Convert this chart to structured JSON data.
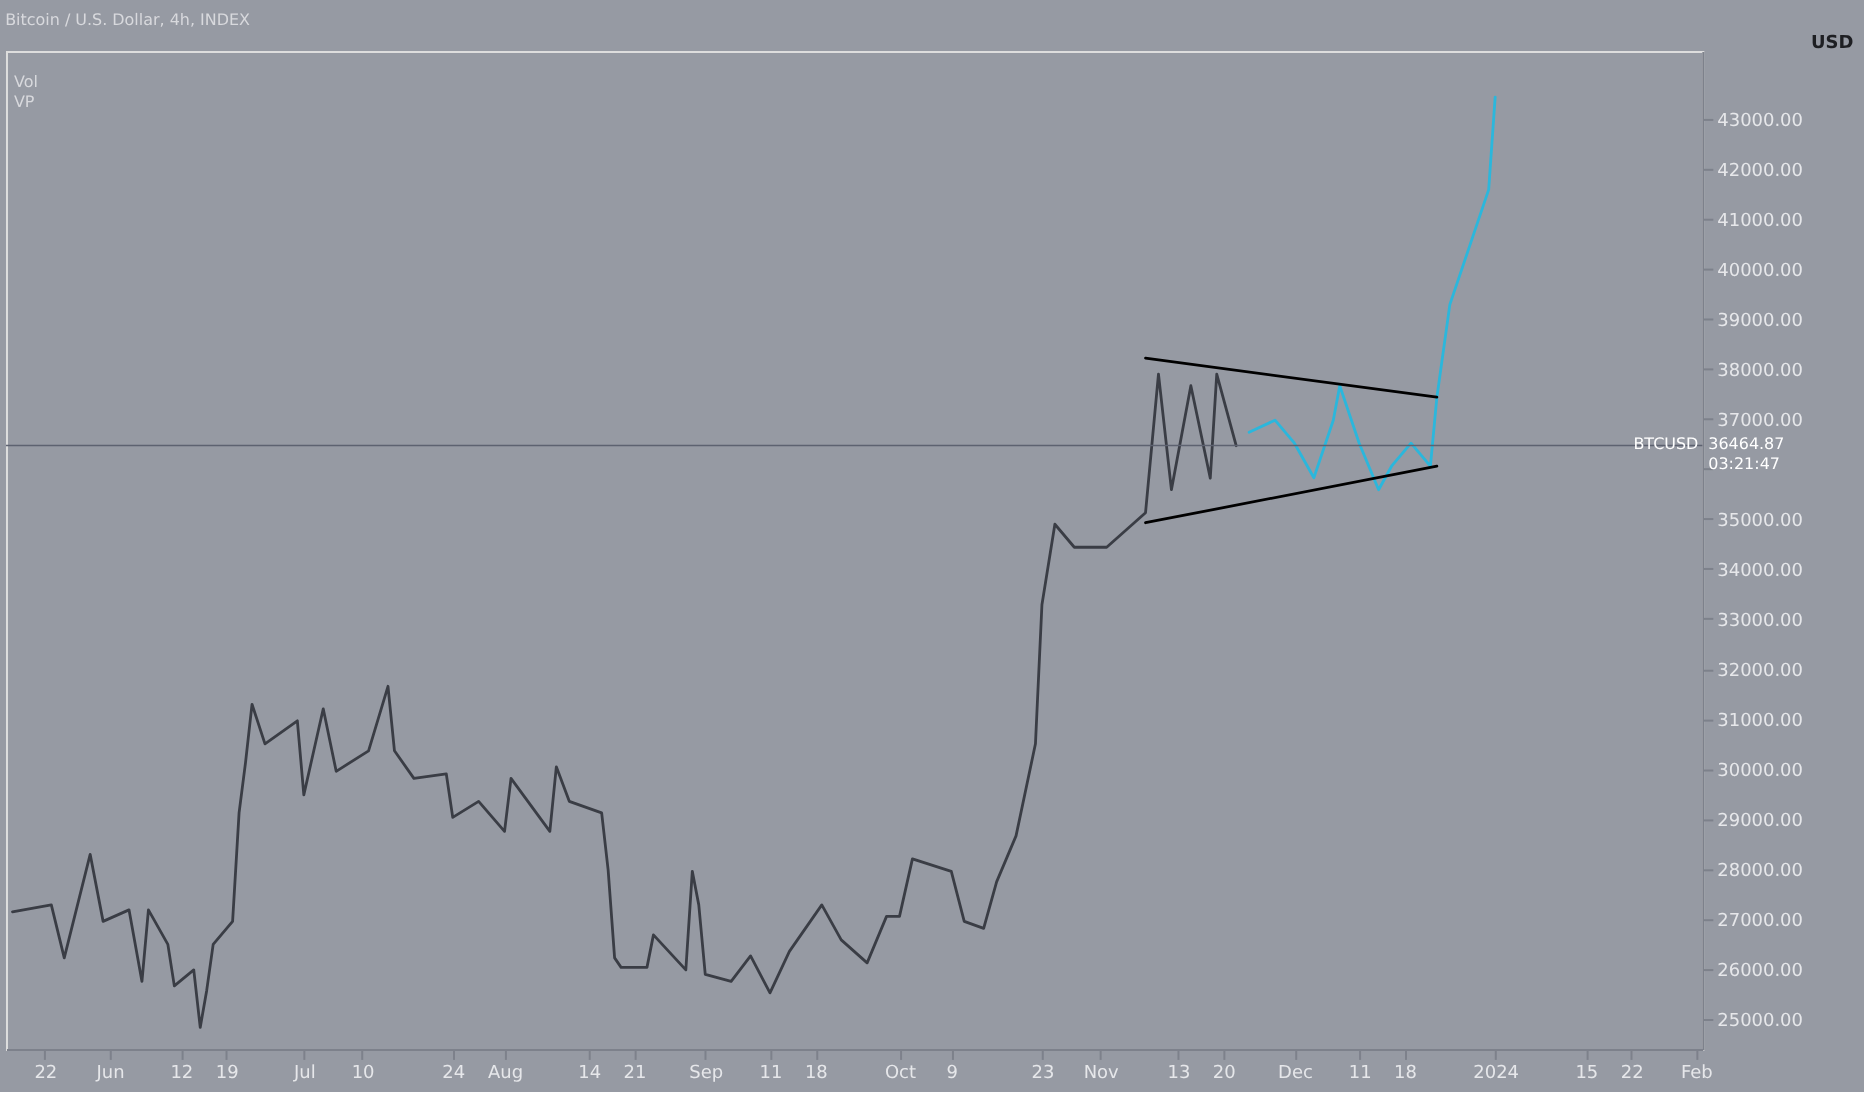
{
  "chart_data": {
    "type": "line",
    "title": "Bitcoin / U.S. Dollar, 4h, INDEX",
    "ylabel": "USD",
    "xlim": [
      "2023-05-16",
      "2024-02-02"
    ],
    "xticks": [
      {
        "value": "2023-05-22",
        "label": "22"
      },
      {
        "value": "2023-06-01",
        "label": "Jun"
      },
      {
        "value": "2023-06-12",
        "label": "12"
      },
      {
        "value": "2023-06-19",
        "label": "19"
      },
      {
        "value": "2023-07-01",
        "label": "Jul"
      },
      {
        "value": "2023-07-10",
        "label": "10"
      },
      {
        "value": "2023-07-24",
        "label": "24"
      },
      {
        "value": "2023-08-01",
        "label": "Aug"
      },
      {
        "value": "2023-08-14",
        "label": "14"
      },
      {
        "value": "2023-08-21",
        "label": "21"
      },
      {
        "value": "2023-09-01",
        "label": "Sep"
      },
      {
        "value": "2023-09-11",
        "label": "11"
      },
      {
        "value": "2023-09-18",
        "label": "18"
      },
      {
        "value": "2023-10-01",
        "label": "Oct"
      },
      {
        "value": "2023-10-09",
        "label": "9"
      },
      {
        "value": "2023-10-23",
        "label": "23"
      },
      {
        "value": "2023-11-01",
        "label": "Nov"
      },
      {
        "value": "2023-11-13",
        "label": "13"
      },
      {
        "value": "2023-11-20",
        "label": "20"
      },
      {
        "value": "2023-12-01",
        "label": "Dec"
      },
      {
        "value": "2023-12-11",
        "label": "11"
      },
      {
        "value": "2023-12-18",
        "label": "18"
      },
      {
        "value": "2024-01-01",
        "label": "2024"
      },
      {
        "value": "2024-01-15",
        "label": "15"
      },
      {
        "value": "2024-01-22",
        "label": "22"
      },
      {
        "value": "2024-02-01",
        "label": "Feb"
      }
    ],
    "ylim": [
      24400,
      44350
    ],
    "yticks": [
      {
        "value": 25000,
        "label": "25000.00"
      },
      {
        "value": 26000,
        "label": "26000.00"
      },
      {
        "value": 27000,
        "label": "27000.00"
      },
      {
        "value": 28000,
        "label": "28000.00"
      },
      {
        "value": 29000,
        "label": "29000.00"
      },
      {
        "value": 30000,
        "label": "30000.00"
      },
      {
        "value": 31000,
        "label": "31000.00"
      },
      {
        "value": 32000,
        "label": "32000.00"
      },
      {
        "value": 33000,
        "label": "33000.00"
      },
      {
        "value": 34000,
        "label": "34000.00"
      },
      {
        "value": 35000,
        "label": "35000.00"
      },
      {
        "value": 36000,
        "label": null
      },
      {
        "value": 37000,
        "label": "37000.00"
      },
      {
        "value": 38000,
        "label": "38000.00"
      },
      {
        "value": 39000,
        "label": "39000.00"
      },
      {
        "value": 40000,
        "label": "40000.00"
      },
      {
        "value": 41000,
        "label": "41000.00"
      },
      {
        "value": 42000,
        "label": "42000.00"
      },
      {
        "value": 43000,
        "label": "43000.00"
      }
    ],
    "grid": false,
    "series": [
      {
        "color": "#3a3d45",
        "x": [
          "2023-05-17",
          "2023-05-23",
          "2023-05-25",
          "2023-05-29",
          "2023-05-31",
          "2023-06-04",
          "2023-06-06",
          "2023-06-07",
          "2023-06-10",
          "2023-06-11",
          "2023-06-14",
          "2023-06-15",
          "2023-06-16",
          "2023-06-17",
          "2023-06-20",
          "2023-06-21",
          "2023-06-22",
          "2023-06-23",
          "2023-06-25",
          "2023-06-30",
          "2023-07-01",
          "2023-07-04",
          "2023-07-06",
          "2023-07-11",
          "2023-07-14",
          "2023-07-15",
          "2023-07-18",
          "2023-07-23",
          "2023-07-24",
          "2023-07-28",
          "2023-08-01",
          "2023-08-02",
          "2023-08-08",
          "2023-08-09",
          "2023-08-11",
          "2023-08-16",
          "2023-08-17",
          "2023-08-18",
          "2023-08-19",
          "2023-08-23",
          "2023-08-24",
          "2023-08-29",
          "2023-08-30",
          "2023-08-31",
          "2023-09-01",
          "2023-09-05",
          "2023-09-08",
          "2023-09-11",
          "2023-09-14",
          "2023-09-19",
          "2023-09-22",
          "2023-09-26",
          "2023-09-29",
          "2023-10-01",
          "2023-10-03",
          "2023-10-09",
          "2023-10-11",
          "2023-10-14",
          "2023-10-16",
          "2023-10-19",
          "2023-10-22",
          "2023-10-23",
          "2023-10-25",
          "2023-10-28",
          "2023-11-02",
          "2023-11-08",
          "2023-11-10",
          "2023-11-12",
          "2023-11-15",
          "2023-11-18",
          "2023-11-19",
          "2023-11-22"
        ],
        "values": [
          27140,
          27280,
          26220,
          28290,
          26950,
          27180,
          25750,
          27180,
          26490,
          25660,
          25980,
          24830,
          25570,
          26490,
          26950,
          29120,
          30130,
          31290,
          30500,
          30960,
          29480,
          31200,
          29950,
          30360,
          31650,
          30360,
          29810,
          29900,
          29030,
          29350,
          28750,
          29810,
          28750,
          30040,
          29350,
          29120,
          27980,
          26220,
          26030,
          26030,
          26680,
          25980,
          27950,
          27280,
          25890,
          25750,
          26260,
          25520,
          26350,
          27280,
          26580,
          26120,
          27050,
          27050,
          28200,
          27950,
          26950,
          26810,
          27740,
          28660,
          30500,
          33280,
          34890,
          34430,
          34430,
          35120,
          37890,
          35580,
          37660,
          35810,
          37890,
          36460
        ]
      },
      {
        "color": "#2bb7dc",
        "x": [
          "2023-11-24",
          "2023-11-28",
          "2023-12-01",
          "2023-12-04",
          "2023-12-07",
          "2023-12-08",
          "2023-12-11",
          "2023-12-14",
          "2023-12-16",
          "2023-12-19",
          "2023-12-22",
          "2023-12-23",
          "2023-12-25",
          "2023-12-28",
          "2023-12-31",
          "2024-01-01"
        ],
        "values": [
          36730,
          36970,
          36510,
          35820,
          36970,
          37660,
          36510,
          35580,
          36050,
          36510,
          36050,
          37430,
          39280,
          40430,
          41580,
          43430
        ]
      },
      {
        "color": "#000000",
        "x": [
          "2023-11-08",
          "2023-12-23"
        ],
        "values": [
          38210,
          37430
        ]
      },
      {
        "color": "#000000",
        "x": [
          "2023-11-08",
          "2023-12-23"
        ],
        "values": [
          34920,
          36050
        ]
      }
    ],
    "ref_lines": [
      {
        "axis": "y",
        "value": 36464.87,
        "label": "BTCUSD",
        "color": "#5d6270"
      }
    ],
    "annotations": [
      "Vol",
      "VP",
      "36464.87",
      "03:21:47"
    ]
  }
}
